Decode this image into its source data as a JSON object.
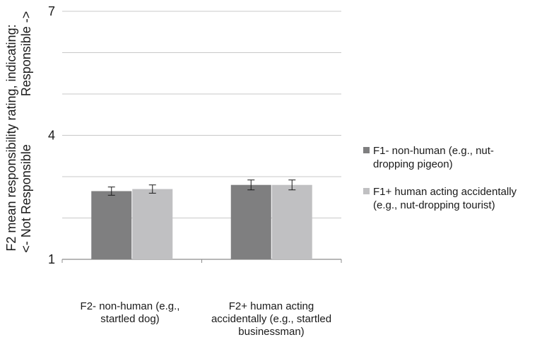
{
  "chart_data": {
    "type": "bar",
    "title": "",
    "xlabel": "",
    "ylabel_lines": [
      "F2 mean responsibility rating, indicating:",
      "<- Not Responsible",
      "Responsible ->"
    ],
    "ylim": [
      1,
      7
    ],
    "yticks": [
      1,
      4,
      7
    ],
    "gridlines": [
      1,
      2,
      3,
      4,
      5,
      6,
      7
    ],
    "categories": [
      "F2-  non-human (e.g., startled dog)",
      "F2+  human acting accidentally (e.g., startled businessman)"
    ],
    "series": [
      {
        "name": "F1-  non-human (e.g., nut-dropping pigeon)",
        "color": "#7f7f80",
        "values": [
          2.65,
          2.8
        ],
        "errors": [
          0.1,
          0.12
        ]
      },
      {
        "name": "F1+  human acting accidentally (e.g., nut-dropping tourist)",
        "color": "#c0c0c2",
        "values": [
          2.7,
          2.8
        ],
        "errors": [
          0.1,
          0.12
        ]
      }
    ],
    "grid": true,
    "legend_position": "right",
    "error_bars": true
  },
  "category_label_lines": [
    [
      "F2-  non-human (e.g.,",
      "startled dog)"
    ],
    [
      "F2+  human acting",
      "accidentally (e.g., startled",
      "businessman)"
    ]
  ],
  "legend_lines": [
    [
      "F1-  non-human (e.g., nut-",
      "dropping pigeon)"
    ],
    [
      "F1+  human acting accidentally",
      "(e.g., nut-dropping tourist)"
    ]
  ]
}
